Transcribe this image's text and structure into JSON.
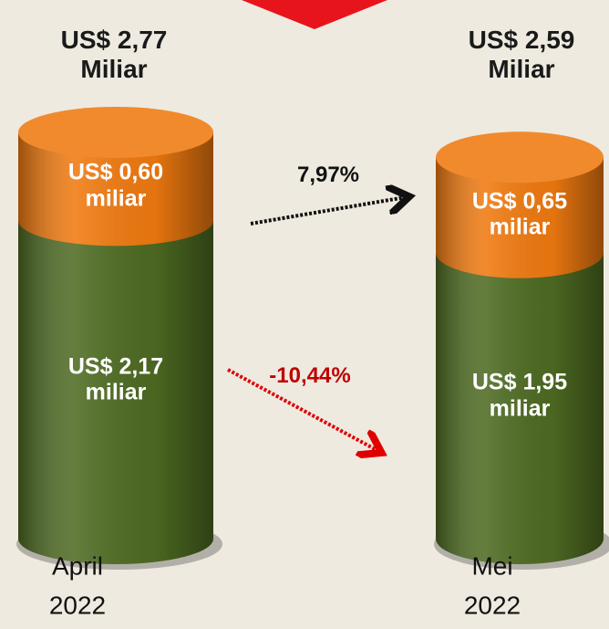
{
  "chart_data": {
    "type": "stacked_cylinder",
    "categories": [
      "April 2022",
      "Mei 2022"
    ],
    "series": [
      {
        "color": "#4e6b22",
        "values": [
          2.17,
          1.95
        ],
        "value_labels": [
          "US$ 2,17 miliar",
          "US$ 1,95 miliar"
        ]
      },
      {
        "color": "#f07a10",
        "values": [
          0.6,
          0.65
        ],
        "value_labels": [
          "US$ 0,60 miliar",
          "US$ 0,65 miliar"
        ]
      }
    ],
    "total_labels": [
      "US$ 2,77 Miliar",
      "US$ 2,59 Miliar"
    ],
    "annotations": [
      {
        "text": "7,97%",
        "color": "#111111"
      },
      {
        "text": "-10,44%",
        "color": "#c00000"
      }
    ],
    "ylim": [
      0,
      2.77
    ]
  }
}
